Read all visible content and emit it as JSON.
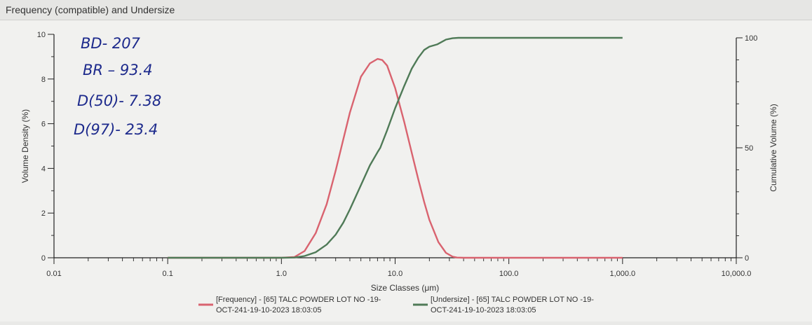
{
  "window": {
    "title": "Frequency (compatible) and Undersize"
  },
  "annotations": {
    "lines": [
      "BD- 207",
      "BR – 93.4",
      "D(50)- 7.38",
      "D(97)- 23.4"
    ]
  },
  "colors": {
    "frequency": "#d9636f",
    "undersize": "#4f7a57",
    "axis": "#222222",
    "annotation_ink": "#1d2a8c"
  },
  "chart_data": {
    "type": "line",
    "title": "",
    "xlabel": "Size Classes (μm)",
    "ylabel": "Volume Density (%)",
    "y2label": "Cumulative Volume (%)",
    "x_scale": "log",
    "xlim": [
      0.01,
      10000
    ],
    "ylim": [
      0,
      10
    ],
    "y2lim": [
      0,
      100
    ],
    "x_ticks": [
      0.01,
      0.1,
      1.0,
      10.0,
      100.0,
      1000.0,
      10000.0
    ],
    "x_tick_labels": [
      "0.01",
      "0.1",
      "1.0",
      "10.0",
      "100.0",
      "1,000.0",
      "10,000.0"
    ],
    "y_ticks": [
      0,
      2,
      4,
      6,
      8,
      10
    ],
    "y_tick_labels": [
      "0",
      "2",
      "4",
      "6",
      "8",
      "10"
    ],
    "y2_ticks": [
      0,
      50,
      100
    ],
    "y2_tick_labels": [
      "0",
      "50",
      "100"
    ],
    "grid": false,
    "legend_position": "bottom",
    "series": [
      {
        "name": "[Frequency] - [65] TALC POWDER LOT NO -19-OCT-241-19-10-2023 18:03:05",
        "axis": "left",
        "x": [
          0.1,
          1.0,
          1.3,
          1.6,
          2.0,
          2.5,
          3.0,
          3.5,
          4.0,
          5.0,
          6.0,
          7.0,
          7.7,
          8.5,
          10.0,
          12.0,
          14.0,
          16.0,
          18.0,
          20.0,
          24.0,
          28.0,
          32.0,
          35.0,
          40.0,
          100.0,
          1000.0
        ],
        "y": [
          0,
          0,
          0.03,
          0.3,
          1.1,
          2.4,
          3.9,
          5.3,
          6.5,
          8.1,
          8.7,
          8.9,
          8.85,
          8.6,
          7.6,
          6.1,
          4.7,
          3.5,
          2.5,
          1.7,
          0.7,
          0.22,
          0.05,
          0.01,
          0,
          0,
          0
        ]
      },
      {
        "name": "[Undersize] - [65] TALC POWDER LOT NO -19-OCT-241-19-10-2023 18:03:05",
        "axis": "right",
        "x": [
          0.1,
          1.0,
          1.3,
          1.6,
          2.0,
          2.5,
          3.0,
          3.5,
          4.0,
          5.0,
          6.0,
          7.0,
          7.4,
          8.5,
          10.0,
          12.0,
          14.0,
          16.0,
          18.0,
          20.0,
          23.4,
          28.0,
          32.0,
          36.0,
          100.0,
          1000.0
        ],
        "y": [
          0,
          0,
          0.1,
          0.8,
          2.5,
          6.0,
          10.5,
          16.0,
          22.0,
          33.0,
          42.0,
          48.0,
          50.0,
          58.0,
          68.0,
          78.0,
          86.0,
          91.0,
          94.5,
          96.0,
          97.0,
          99.2,
          99.8,
          100,
          100,
          100
        ]
      }
    ]
  }
}
